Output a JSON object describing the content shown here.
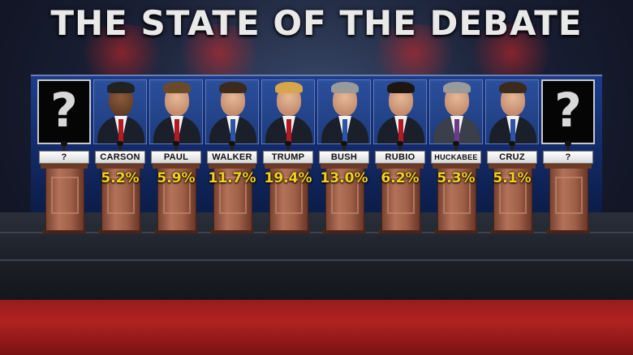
{
  "title": "THE STATE OF THE DEBATE",
  "colors": {
    "percent_text": "#f3d21a",
    "podium": "#a0614a",
    "backdrop": "#1d3a7c",
    "floor_band": "#b02222"
  },
  "candidates": [
    {
      "name": "?",
      "percent": "",
      "unknown": true
    },
    {
      "name": "CARSON",
      "percent": "5.2%"
    },
    {
      "name": "PAUL",
      "percent": "5.9%"
    },
    {
      "name": "WALKER",
      "percent": "11.7%"
    },
    {
      "name": "TRUMP",
      "percent": "19.4%"
    },
    {
      "name": "BUSH",
      "percent": "13.0%"
    },
    {
      "name": "RUBIO",
      "percent": "6.2%"
    },
    {
      "name": "HUCKABEE",
      "percent": "5.3%"
    },
    {
      "name": "CRUZ",
      "percent": "5.1%"
    },
    {
      "name": "?",
      "percent": "",
      "unknown": true
    }
  ]
}
